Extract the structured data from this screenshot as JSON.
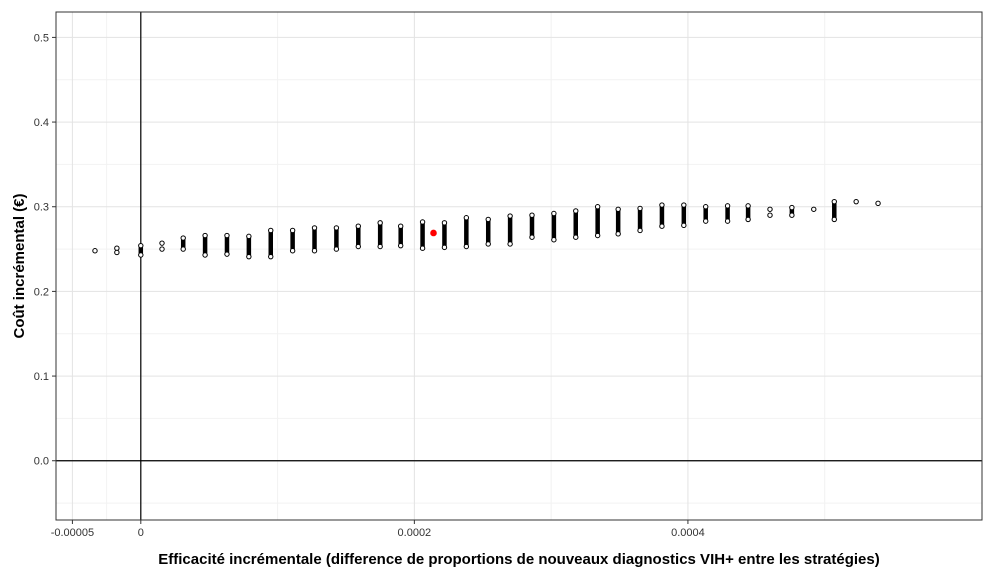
{
  "chart_data": {
    "type": "scatter",
    "title": "",
    "xlabel": "Efficacité incrémentale (difference de proportions de nouveaux diagnostics VIH+ entre les stratégies)",
    "ylabel": "Coût incrémental (€)",
    "xlim": [
      -6.2e-05,
      0.000615
    ],
    "ylim": [
      -0.07,
      0.53
    ],
    "x_ticks": [
      -5e-05,
      0,
      0.0002,
      0.0004
    ],
    "x_tick_labels": [
      "-0.00005",
      "0",
      "0.0002",
      "0.0004"
    ],
    "y_ticks": [
      0.0,
      0.1,
      0.2,
      0.3,
      0.4,
      0.5
    ],
    "y_tick_labels": [
      "0.0",
      "0.1",
      "0.2",
      "0.3",
      "0.4",
      "0.5"
    ],
    "grid": true,
    "reference_lines": {
      "x": 0,
      "y": 0
    },
    "point_color": "#000000",
    "highlight_color": "#ff0000",
    "highlight_point": {
      "x": 0.000214,
      "y": 0.269
    },
    "columns": [
      {
        "x": -3.35e-05,
        "y_min": 0.248,
        "y_max": 0.248
      },
      {
        "x": -1.75e-05,
        "y_min": 0.246,
        "y_max": 0.251
      },
      {
        "x": 0.0,
        "y_min": 0.243,
        "y_max": 0.254
      },
      {
        "x": 1.55e-05,
        "y_min": 0.25,
        "y_max": 0.257
      },
      {
        "x": 3.1e-05,
        "y_min": 0.25,
        "y_max": 0.263
      },
      {
        "x": 4.7e-05,
        "y_min": 0.243,
        "y_max": 0.266
      },
      {
        "x": 6.3e-05,
        "y_min": 0.244,
        "y_max": 0.266
      },
      {
        "x": 7.9e-05,
        "y_min": 0.241,
        "y_max": 0.265
      },
      {
        "x": 9.5e-05,
        "y_min": 0.241,
        "y_max": 0.272
      },
      {
        "x": 0.000111,
        "y_min": 0.248,
        "y_max": 0.272
      },
      {
        "x": 0.000127,
        "y_min": 0.248,
        "y_max": 0.275
      },
      {
        "x": 0.000143,
        "y_min": 0.25,
        "y_max": 0.275
      },
      {
        "x": 0.000159,
        "y_min": 0.253,
        "y_max": 0.277
      },
      {
        "x": 0.000175,
        "y_min": 0.253,
        "y_max": 0.281
      },
      {
        "x": 0.00019,
        "y_min": 0.254,
        "y_max": 0.277
      },
      {
        "x": 0.000206,
        "y_min": 0.251,
        "y_max": 0.282
      },
      {
        "x": 0.000222,
        "y_min": 0.252,
        "y_max": 0.281
      },
      {
        "x": 0.000238,
        "y_min": 0.253,
        "y_max": 0.287
      },
      {
        "x": 0.000254,
        "y_min": 0.256,
        "y_max": 0.285
      },
      {
        "x": 0.00027,
        "y_min": 0.256,
        "y_max": 0.289
      },
      {
        "x": 0.000286,
        "y_min": 0.264,
        "y_max": 0.29
      },
      {
        "x": 0.000302,
        "y_min": 0.261,
        "y_max": 0.292
      },
      {
        "x": 0.000318,
        "y_min": 0.264,
        "y_max": 0.295
      },
      {
        "x": 0.000334,
        "y_min": 0.266,
        "y_max": 0.3
      },
      {
        "x": 0.000349,
        "y_min": 0.268,
        "y_max": 0.297
      },
      {
        "x": 0.000365,
        "y_min": 0.272,
        "y_max": 0.298
      },
      {
        "x": 0.000381,
        "y_min": 0.277,
        "y_max": 0.302
      },
      {
        "x": 0.000397,
        "y_min": 0.278,
        "y_max": 0.302
      },
      {
        "x": 0.000413,
        "y_min": 0.283,
        "y_max": 0.3
      },
      {
        "x": 0.000429,
        "y_min": 0.283,
        "y_max": 0.301
      },
      {
        "x": 0.000444,
        "y_min": 0.285,
        "y_max": 0.301
      },
      {
        "x": 0.00046,
        "y_min": 0.29,
        "y_max": 0.297
      },
      {
        "x": 0.000476,
        "y_min": 0.29,
        "y_max": 0.299
      },
      {
        "x": 0.000492,
        "y_min": 0.297,
        "y_max": 0.297
      },
      {
        "x": 0.000507,
        "y_min": 0.285,
        "y_max": 0.306
      },
      {
        "x": 0.000523,
        "y_min": 0.306,
        "y_max": 0.306
      },
      {
        "x": 0.000539,
        "y_min": 0.304,
        "y_max": 0.304
      }
    ]
  }
}
